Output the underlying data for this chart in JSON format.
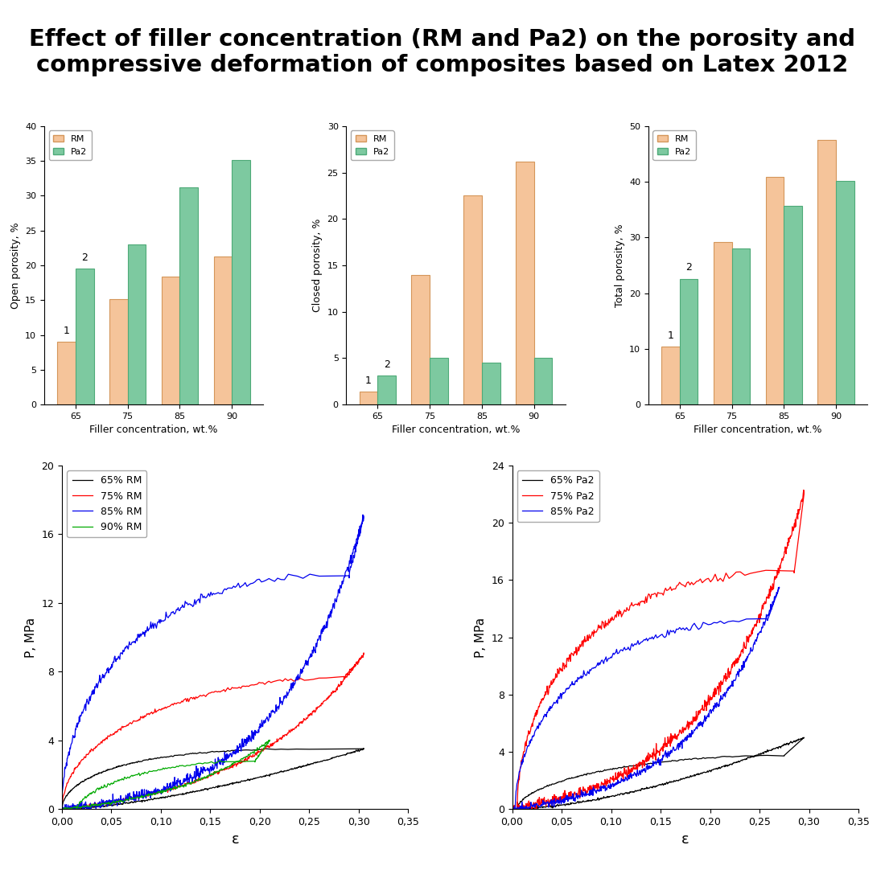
{
  "title": "Effect of filler concentration (RM and Pa2) on the porosity and\ncompressive deformation of composites based on Latex 2012",
  "title_fontsize": 21,
  "bar_color_rm": "#F5C49A",
  "bar_color_pa2": "#7DC9A0",
  "bar_edge_rm": "#D4965A",
  "bar_edge_pa2": "#4EAA78",
  "filler_concentrations": [
    65,
    75,
    85,
    90
  ],
  "open_porosity_rm": [
    9.0,
    15.2,
    18.4,
    21.3
  ],
  "open_porosity_pa2": [
    19.5,
    23.0,
    31.2,
    35.1
  ],
  "open_porosity_ylim": [
    0,
    40
  ],
  "open_porosity_yticks": [
    0,
    5,
    10,
    15,
    20,
    25,
    30,
    35,
    40
  ],
  "open_porosity_ylabel": "Open porosity, %",
  "closed_porosity_rm": [
    1.4,
    14.0,
    22.5,
    26.2
  ],
  "closed_porosity_pa2": [
    3.1,
    5.0,
    4.5,
    5.0
  ],
  "closed_porosity_ylim": [
    0,
    30
  ],
  "closed_porosity_yticks": [
    0,
    5,
    10,
    15,
    20,
    25,
    30
  ],
  "closed_porosity_ylabel": "Closed porosity, %",
  "total_porosity_rm": [
    10.4,
    29.2,
    40.9,
    47.5
  ],
  "total_porosity_pa2": [
    22.6,
    28.0,
    35.7,
    40.1
  ],
  "total_porosity_ylim": [
    0,
    50
  ],
  "total_porosity_yticks": [
    0,
    10,
    20,
    30,
    40,
    50
  ],
  "total_porosity_ylabel": "Total porosity, %",
  "xlabel_bar": "Filler concentration, wt.%",
  "legend_labels": [
    "RM",
    "Pa2"
  ],
  "xlabel_line": "ε",
  "ylabel_line": "P, MPa",
  "rm_ylim": [
    0,
    20
  ],
  "rm_yticks": [
    0,
    4,
    8,
    12,
    16,
    20
  ],
  "pa2_ylim": [
    0,
    24
  ],
  "pa2_yticks": [
    0,
    4,
    8,
    12,
    16,
    20,
    24
  ],
  "line_xticks": [
    0.0,
    0.05,
    0.1,
    0.15,
    0.2,
    0.25,
    0.3,
    0.35
  ],
  "line_xlim": [
    0,
    0.35
  ]
}
